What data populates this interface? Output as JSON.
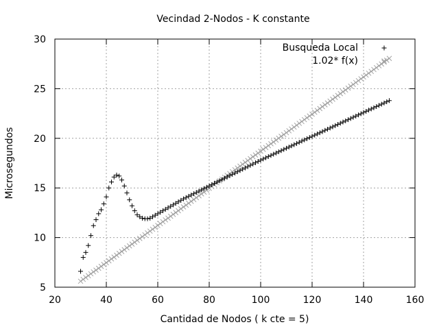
{
  "chart_data": {
    "type": "scatter",
    "title": "Vecindad 2-Nodos - K constante",
    "xlabel": "Cantidad de Nodos ( k cte = 5)",
    "ylabel": "Microsegundos",
    "xlim": [
      20,
      160
    ],
    "ylim": [
      5,
      30
    ],
    "xticks": [
      20,
      40,
      60,
      80,
      100,
      120,
      140,
      160
    ],
    "yticks": [
      5,
      10,
      15,
      20,
      25,
      30
    ],
    "grid": true,
    "legend_position": "top-right",
    "series": [
      {
        "name": "Busqueda Local",
        "marker": "plus",
        "color": "#000000",
        "x": [
          30,
          31,
          32,
          33,
          34,
          35,
          36,
          37,
          38,
          39,
          40,
          41,
          42,
          43,
          44,
          45,
          46,
          47,
          48,
          49,
          50,
          51,
          52,
          53,
          54,
          55,
          56,
          57,
          58,
          59,
          60,
          61,
          62,
          63,
          64,
          65,
          66,
          67,
          68,
          69,
          70,
          71,
          72,
          73,
          74,
          75,
          76,
          77,
          78,
          79,
          80,
          81,
          82,
          83,
          84,
          85,
          86,
          87,
          88,
          89,
          90,
          91,
          92,
          93,
          94,
          95,
          96,
          97,
          98,
          99,
          100,
          101,
          102,
          103,
          104,
          105,
          106,
          107,
          108,
          109,
          110,
          111,
          112,
          113,
          114,
          115,
          116,
          117,
          118,
          119,
          120,
          121,
          122,
          123,
          124,
          125,
          126,
          127,
          128,
          129,
          130,
          131,
          132,
          133,
          134,
          135,
          136,
          137,
          138,
          139,
          140,
          141,
          142,
          143,
          144,
          145,
          146,
          147,
          148,
          149,
          150
        ],
        "y": [
          6.6,
          8.0,
          8.5,
          9.2,
          10.2,
          11.2,
          11.8,
          12.4,
          12.8,
          13.4,
          14.1,
          15.0,
          15.6,
          16.1,
          16.3,
          16.2,
          15.8,
          15.2,
          14.5,
          13.8,
          13.2,
          12.7,
          12.3,
          12.1,
          11.95,
          11.9,
          11.9,
          11.95,
          12.1,
          12.25,
          12.4,
          12.55,
          12.7,
          12.85,
          13.0,
          13.15,
          13.3,
          13.45,
          13.6,
          13.75,
          13.9,
          14.03,
          14.16,
          14.29,
          14.42,
          14.55,
          14.68,
          14.81,
          14.94,
          15.07,
          15.2,
          15.33,
          15.46,
          15.59,
          15.72,
          15.85,
          15.98,
          16.11,
          16.24,
          16.37,
          16.5,
          16.63,
          16.76,
          16.89,
          17.02,
          17.15,
          17.28,
          17.41,
          17.54,
          17.67,
          17.8,
          17.92,
          18.04,
          18.16,
          18.28,
          18.4,
          18.52,
          18.64,
          18.76,
          18.88,
          19.0,
          19.12,
          19.24,
          19.36,
          19.48,
          19.6,
          19.72,
          19.84,
          19.96,
          20.08,
          20.2,
          20.32,
          20.44,
          20.56,
          20.68,
          20.8,
          20.92,
          21.04,
          21.16,
          21.28,
          21.4,
          21.52,
          21.64,
          21.76,
          21.88,
          22.0,
          22.12,
          22.24,
          22.36,
          22.48,
          22.6,
          22.72,
          22.84,
          22.96,
          23.08,
          23.2,
          23.32,
          23.44,
          23.56,
          23.68,
          23.8
        ]
      },
      {
        "name": "1.02* f(x)",
        "marker": "cross",
        "color": "#a0a0a0",
        "x": [
          30,
          31,
          32,
          33,
          34,
          35,
          36,
          37,
          38,
          39,
          40,
          41,
          42,
          43,
          44,
          45,
          46,
          47,
          48,
          49,
          50,
          51,
          52,
          53,
          54,
          55,
          56,
          57,
          58,
          59,
          60,
          61,
          62,
          63,
          64,
          65,
          66,
          67,
          68,
          69,
          70,
          71,
          72,
          73,
          74,
          75,
          76,
          77,
          78,
          79,
          80,
          81,
          82,
          83,
          84,
          85,
          86,
          87,
          88,
          89,
          90,
          91,
          92,
          93,
          94,
          95,
          96,
          97,
          98,
          99,
          100,
          101,
          102,
          103,
          104,
          105,
          106,
          107,
          108,
          109,
          110,
          111,
          112,
          113,
          114,
          115,
          116,
          117,
          118,
          119,
          120,
          121,
          122,
          123,
          124,
          125,
          126,
          127,
          128,
          129,
          130,
          131,
          132,
          133,
          134,
          135,
          136,
          137,
          138,
          139,
          140,
          141,
          142,
          143,
          144,
          145,
          146,
          147,
          148,
          149,
          150
        ],
        "y": [
          5.6,
          5.79,
          5.98,
          6.16,
          6.35,
          6.54,
          6.72,
          6.91,
          7.1,
          7.29,
          7.47,
          7.66,
          7.85,
          8.03,
          8.22,
          8.41,
          8.6,
          8.78,
          8.97,
          9.16,
          9.34,
          9.53,
          9.72,
          9.91,
          10.09,
          10.28,
          10.47,
          10.65,
          10.84,
          11.03,
          11.22,
          11.4,
          11.59,
          11.78,
          11.96,
          12.15,
          12.34,
          12.52,
          12.71,
          12.9,
          13.09,
          13.27,
          13.46,
          13.65,
          13.83,
          14.02,
          14.21,
          14.4,
          14.58,
          14.77,
          14.96,
          15.14,
          15.33,
          15.52,
          15.71,
          15.89,
          16.08,
          16.27,
          16.45,
          16.64,
          16.83,
          17.01,
          17.2,
          17.39,
          17.58,
          17.76,
          17.95,
          18.14,
          18.32,
          18.51,
          18.7,
          18.89,
          19.07,
          19.26,
          19.45,
          19.63,
          19.82,
          20.01,
          20.2,
          20.38,
          20.57,
          20.76,
          20.94,
          21.13,
          21.32,
          21.51,
          21.69,
          21.88,
          22.07,
          22.25,
          22.44,
          22.63,
          22.81,
          23.0,
          23.19,
          23.38,
          23.56,
          23.75,
          23.94,
          24.12,
          24.31,
          24.5,
          24.69,
          24.87,
          25.06,
          25.25,
          25.43,
          25.62,
          25.81,
          26.0,
          26.18,
          26.37,
          26.56,
          26.74,
          26.93,
          27.12,
          27.31,
          27.49,
          27.68,
          27.87,
          28.05
        ]
      }
    ]
  }
}
